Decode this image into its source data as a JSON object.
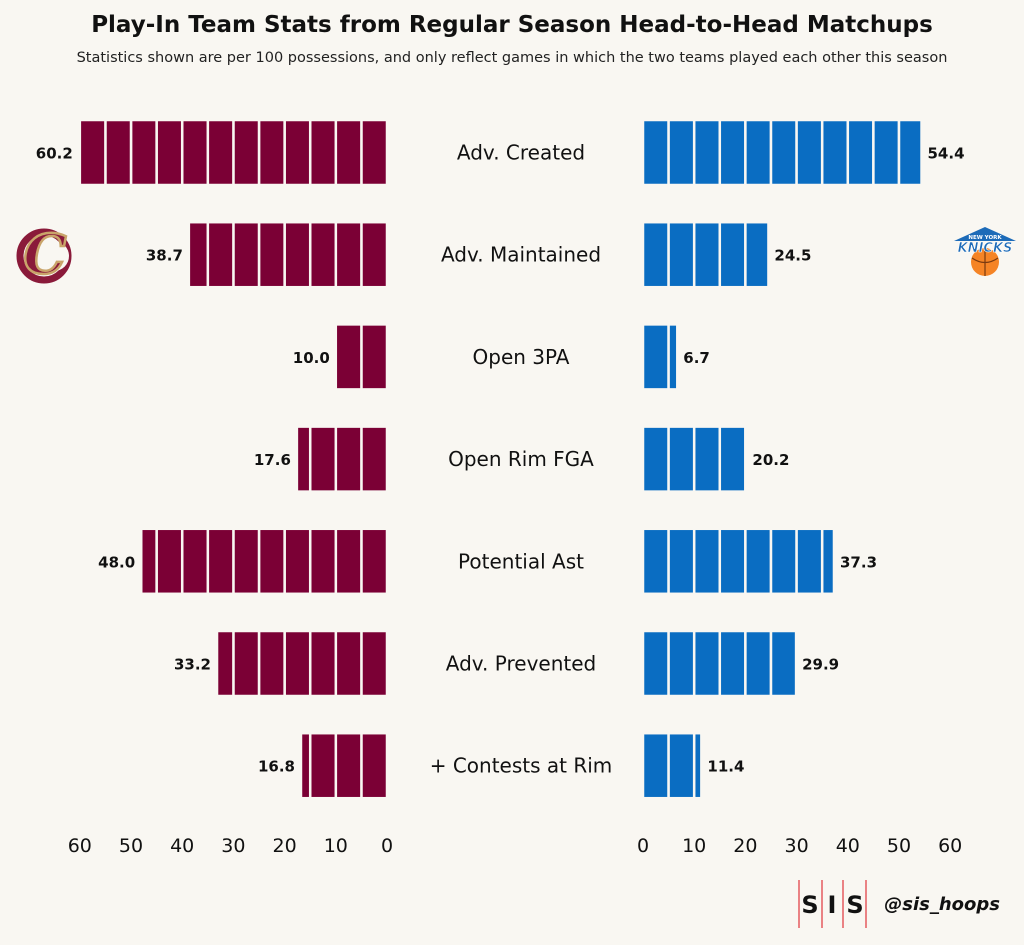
{
  "title": "Play-In Team Stats from Regular Season Head-to-Head Matchups",
  "subtitle": "Statistics shown are per 100 possessions, and only reflect games in which the two teams played each other this season",
  "credit": "@sis_hoops",
  "brand": {
    "letters": [
      "S",
      "I",
      "S"
    ],
    "line_color": "#e0343c"
  },
  "teams": {
    "left": {
      "logo_letter": "C",
      "color": "#7b0035",
      "logo_color": "#8a1a3a",
      "logo_accent": "#c9a46a"
    },
    "right": {
      "logo_text": "KNICKS",
      "logo_top_text": "NEW YORK",
      "color": "#0a6dc2",
      "logo_color": "#1d6bb8",
      "logo_accent": "#f58426"
    }
  },
  "chart_data": {
    "type": "bar",
    "orientation": "horizontal-diverging",
    "segment_size": 5,
    "categories": [
      "Adv. Created",
      "Adv. Maintained",
      "Open 3PA",
      "Open Rim FGA",
      "Potential Ast",
      "Adv. Prevented",
      "+ Contests at Rim"
    ],
    "series": [
      {
        "side": "left",
        "values": [
          60.2,
          38.7,
          10.0,
          17.6,
          48.0,
          33.2,
          16.8
        ],
        "labels": [
          "60.2",
          "38.7",
          "10.0",
          "17.6",
          "48.0",
          "33.2",
          "16.8"
        ],
        "color": "#7b0035"
      },
      {
        "side": "right",
        "values": [
          54.4,
          24.5,
          6.7,
          20.2,
          37.3,
          29.9,
          11.4
        ],
        "labels": [
          "54.4",
          "24.5",
          "6.7",
          "20.2",
          "37.3",
          "29.9",
          "11.4"
        ],
        "color": "#0a6dc2"
      }
    ],
    "xlim": [
      0,
      60
    ],
    "ticks": [
      0,
      10,
      20,
      30,
      40,
      50,
      60
    ],
    "tick_labels": [
      "0",
      "10",
      "20",
      "30",
      "40",
      "50",
      "60"
    ],
    "grid": false,
    "legend": "none"
  }
}
